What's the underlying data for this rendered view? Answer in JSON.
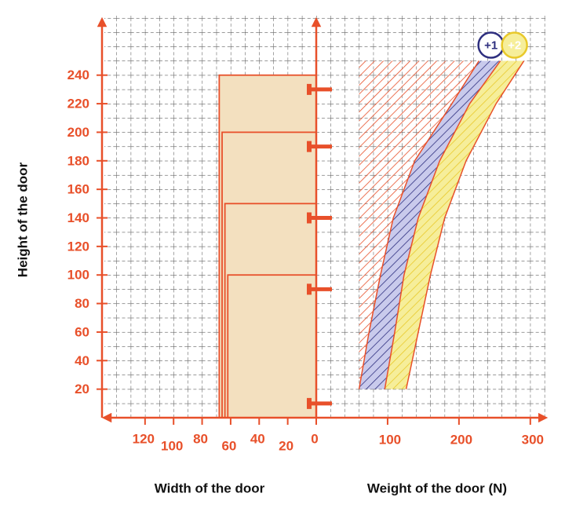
{
  "chart_data": {
    "type": "selection",
    "ylabel": "Height of the door",
    "ylim": [
      0,
      280
    ],
    "yticks": [
      20,
      40,
      60,
      80,
      100,
      120,
      140,
      160,
      180,
      200,
      220,
      240
    ],
    "width_axis": {
      "label": "Width of the door",
      "lim": [
        0,
        150
      ],
      "ticks": [
        0,
        20,
        40,
        60,
        80,
        100,
        120
      ]
    },
    "weight_axis": {
      "label": "Weight of the door (N)",
      "lim": [
        0,
        320
      ],
      "ticks": [
        100,
        200,
        300
      ]
    },
    "doors": {
      "widths": [
        68,
        66,
        64,
        62
      ],
      "heights": [
        240,
        200,
        150,
        100
      ],
      "color": "#f3e0bf"
    },
    "hinges": {
      "heights": [
        230,
        190,
        140,
        90,
        10
      ]
    },
    "limit_weight": 60,
    "limit_color": "#e8502a",
    "band_heights": [
      20,
      60,
      100,
      140,
      180,
      220,
      250
    ],
    "boundaries": [
      [
        60,
        74,
        90,
        108,
        138,
        190,
        228
      ],
      [
        96,
        110,
        123,
        143,
        173,
        215,
        258
      ],
      [
        126,
        143,
        160,
        180,
        210,
        252,
        291
      ]
    ],
    "series": [
      {
        "name": "+1",
        "color": "#2e2f7f",
        "fill": "#c9caec"
      },
      {
        "name": "+2",
        "color": "#e9c92a",
        "fill": "#f6ee9a"
      }
    ]
  }
}
